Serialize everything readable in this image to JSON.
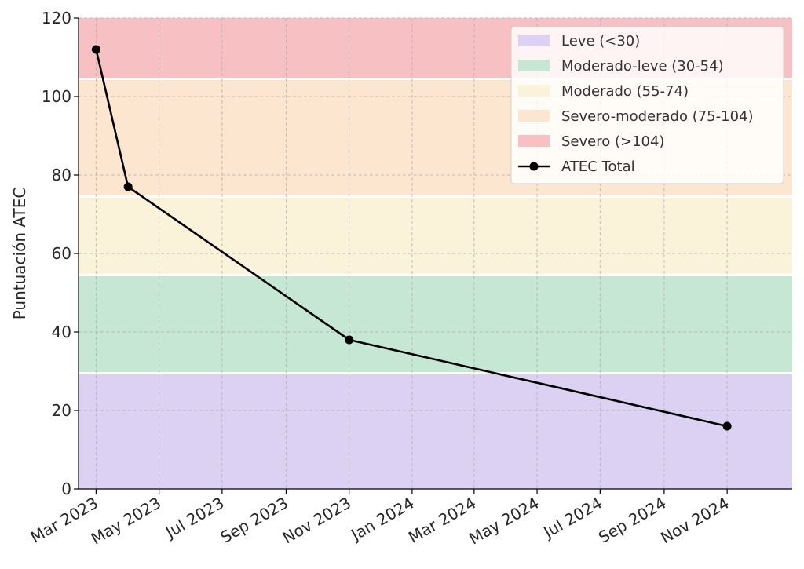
{
  "chart_data": {
    "type": "line",
    "title": "",
    "xlabel": "",
    "ylabel": "Puntuación ATEC",
    "ylim": [
      0,
      120
    ],
    "yticks": [
      0,
      20,
      40,
      60,
      80,
      100,
      120
    ],
    "xlim": [
      "2023-02-12",
      "2025-01-03"
    ],
    "xticks": [
      "2023-03-01",
      "2023-05-01",
      "2023-07-01",
      "2023-09-01",
      "2023-11-01",
      "2024-01-01",
      "2024-03-01",
      "2024-05-01",
      "2024-07-01",
      "2024-09-01",
      "2024-11-01"
    ],
    "xtick_labels": [
      "Mar 2023",
      "May 2023",
      "Jul 2023",
      "Sep 2023",
      "Nov 2023",
      "Jan 2024",
      "Mar 2024",
      "May 2024",
      "Jul 2024",
      "Sep 2024",
      "Nov 2024"
    ],
    "grid": true,
    "legend_position": "top-right",
    "bands": [
      {
        "label": "Leve (<30)",
        "from": 0,
        "to": 29.5,
        "color": "#dcd0f3"
      },
      {
        "label": "Moderado-leve (30-54)",
        "from": 29.5,
        "to": 54.5,
        "color": "#c5e7d4"
      },
      {
        "label": "Moderado (55-74)",
        "from": 54.5,
        "to": 74.5,
        "color": "#fbf3d9"
      },
      {
        "label": "Severo-moderado (75-104)",
        "from": 74.5,
        "to": 104.5,
        "color": "#fde6cf"
      },
      {
        "label": "Severo (>104)",
        "from": 104.5,
        "to": 120,
        "color": "#f7c1c3"
      }
    ],
    "series": [
      {
        "name": "ATEC Total",
        "color": "#000000",
        "x": [
          "2023-03-01",
          "2023-04-01",
          "2023-11-01",
          "2024-11-01"
        ],
        "y": [
          112,
          77,
          38,
          16
        ]
      }
    ]
  }
}
